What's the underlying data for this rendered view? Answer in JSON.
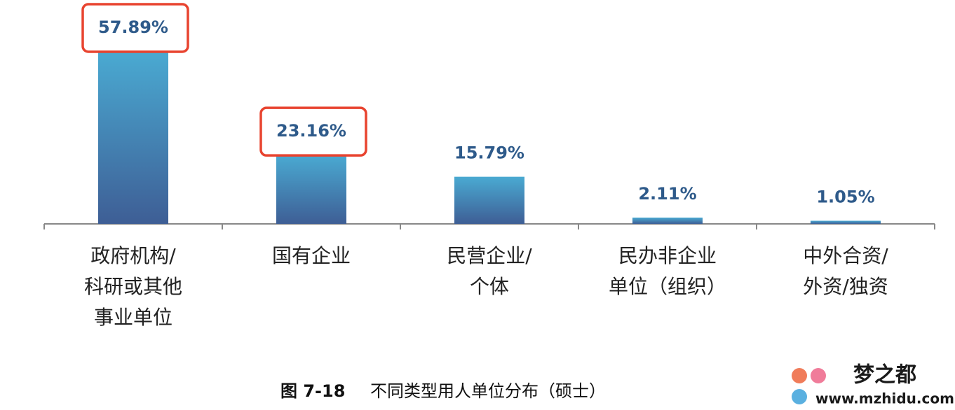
{
  "chart_data": {
    "type": "bar",
    "figure_number": "图 7-18",
    "title": "不同类型用人单位分布（硕士）",
    "categories": [
      [
        "政府机构/",
        "科研或其他",
        "事业单位"
      ],
      [
        "国有企业"
      ],
      [
        "民营企业/",
        "个体"
      ],
      [
        "民办非企业",
        "单位（组织）"
      ],
      [
        "中外合资/",
        "外资/独资"
      ]
    ],
    "values": [
      57.89,
      23.16,
      15.79,
      2.11,
      1.05
    ],
    "value_labels": [
      "57.89%",
      "23.16%",
      "15.79%",
      "2.11%",
      "1.05%"
    ],
    "color": "#4a7fb5",
    "highlight": [
      0,
      1
    ]
  },
  "watermark": {
    "name": "梦之都",
    "url": "www.mzhidu.com"
  }
}
